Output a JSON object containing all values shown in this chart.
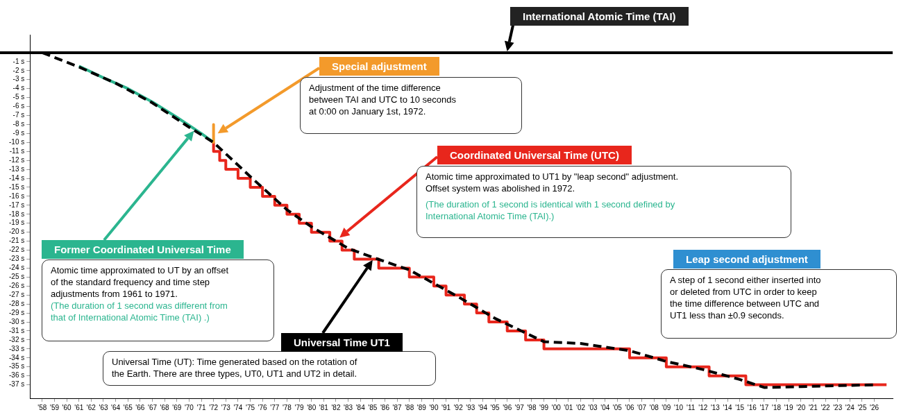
{
  "chart_data": {
    "type": "line",
    "xlim": [
      1957,
      2027.5
    ],
    "ylim": [
      -38.5,
      2
    ],
    "xticks": [
      {
        "value": 1958,
        "label": "'58"
      },
      {
        "value": 1959,
        "label": "'59"
      },
      {
        "value": 1960,
        "label": "'60"
      },
      {
        "value": 1961,
        "label": "'61"
      },
      {
        "value": 1962,
        "label": "'62"
      },
      {
        "value": 1963,
        "label": "'63"
      },
      {
        "value": 1964,
        "label": "'64"
      },
      {
        "value": 1965,
        "label": "'65"
      },
      {
        "value": 1966,
        "label": "'66"
      },
      {
        "value": 1967,
        "label": "'67"
      },
      {
        "value": 1968,
        "label": "'68"
      },
      {
        "value": 1969,
        "label": "'69"
      },
      {
        "value": 1970,
        "label": "'70"
      },
      {
        "value": 1971,
        "label": "'71"
      },
      {
        "value": 1972,
        "label": "'72"
      },
      {
        "value": 1973,
        "label": "'73"
      },
      {
        "value": 1974,
        "label": "'74"
      },
      {
        "value": 1975,
        "label": "'75"
      },
      {
        "value": 1976,
        "label": "'76"
      },
      {
        "value": 1977,
        "label": "'77"
      },
      {
        "value": 1978,
        "label": "'78"
      },
      {
        "value": 1979,
        "label": "'79"
      },
      {
        "value": 1980,
        "label": "'80"
      },
      {
        "value": 1981,
        "label": "'81"
      },
      {
        "value": 1982,
        "label": "'82"
      },
      {
        "value": 1983,
        "label": "'83"
      },
      {
        "value": 1984,
        "label": "'84"
      },
      {
        "value": 1985,
        "label": "'85"
      },
      {
        "value": 1986,
        "label": "'86"
      },
      {
        "value": 1987,
        "label": "'87"
      },
      {
        "value": 1988,
        "label": "'88"
      },
      {
        "value": 1989,
        "label": "'89"
      },
      {
        "value": 1990,
        "label": "'90"
      },
      {
        "value": 1991,
        "label": "'91"
      },
      {
        "value": 1992,
        "label": "'92"
      },
      {
        "value": 1993,
        "label": "'93"
      },
      {
        "value": 1994,
        "label": "'94"
      },
      {
        "value": 1995,
        "label": "'95"
      },
      {
        "value": 1996,
        "label": "'96"
      },
      {
        "value": 1997,
        "label": "'97"
      },
      {
        "value": 1998,
        "label": "'98"
      },
      {
        "value": 1999,
        "label": "'99"
      },
      {
        "value": 2000,
        "label": "'00"
      },
      {
        "value": 2001,
        "label": "'01"
      },
      {
        "value": 2002,
        "label": "'02"
      },
      {
        "value": 2003,
        "label": "'03"
      },
      {
        "value": 2004,
        "label": "'04"
      },
      {
        "value": 2005,
        "label": "'05"
      },
      {
        "value": 2006,
        "label": "'06"
      },
      {
        "value": 2007,
        "label": "'07"
      },
      {
        "value": 2008,
        "label": "'08"
      },
      {
        "value": 2009,
        "label": "'09"
      },
      {
        "value": 2010,
        "label": "'10"
      },
      {
        "value": 2011,
        "label": "'11"
      },
      {
        "value": 2012,
        "label": "'12"
      },
      {
        "value": 2013,
        "label": "'13"
      },
      {
        "value": 2014,
        "label": "'14"
      },
      {
        "value": 2015,
        "label": "'15"
      },
      {
        "value": 2016,
        "label": "'16"
      },
      {
        "value": 2017,
        "label": "'17"
      },
      {
        "value": 2018,
        "label": "'18"
      },
      {
        "value": 2019,
        "label": "'19"
      },
      {
        "value": 2020,
        "label": "'20"
      },
      {
        "value": 2021,
        "label": "'21"
      },
      {
        "value": 2022,
        "label": "'22"
      },
      {
        "value": 2023,
        "label": "'23"
      },
      {
        "value": 2024,
        "label": "'24"
      },
      {
        "value": 2025,
        "label": "'25"
      },
      {
        "value": 2026,
        "label": "'26"
      }
    ],
    "yticks": [
      {
        "value": -1,
        "label": "-1 s"
      },
      {
        "value": -2,
        "label": "-2 s"
      },
      {
        "value": -3,
        "label": "-3 s"
      },
      {
        "value": -4,
        "label": "-4 s"
      },
      {
        "value": -5,
        "label": "-5 s"
      },
      {
        "value": -6,
        "label": "-6 s"
      },
      {
        "value": -7,
        "label": "-7 s"
      },
      {
        "value": -8,
        "label": "-8 s"
      },
      {
        "value": -9,
        "label": "-9 s"
      },
      {
        "value": -10,
        "label": "-10 s"
      },
      {
        "value": -11,
        "label": "-11 s"
      },
      {
        "value": -12,
        "label": "-12 s"
      },
      {
        "value": -13,
        "label": "-13 s"
      },
      {
        "value": -14,
        "label": "-14 s"
      },
      {
        "value": -15,
        "label": "-15 s"
      },
      {
        "value": -16,
        "label": "-16 s"
      },
      {
        "value": -17,
        "label": "-17 s"
      },
      {
        "value": -18,
        "label": "-18 s"
      },
      {
        "value": -19,
        "label": "-19 s"
      },
      {
        "value": -20,
        "label": "-20 s"
      },
      {
        "value": -21,
        "label": "-21 s"
      },
      {
        "value": -22,
        "label": "-22 s"
      },
      {
        "value": -23,
        "label": "-23 s"
      },
      {
        "value": -24,
        "label": "-24 s"
      },
      {
        "value": -25,
        "label": "-25 s"
      },
      {
        "value": -26,
        "label": "-26 s"
      },
      {
        "value": -27,
        "label": "-27 s"
      },
      {
        "value": -28,
        "label": "-28 s"
      },
      {
        "value": -29,
        "label": "-29 s"
      },
      {
        "value": -30,
        "label": "-30 s"
      },
      {
        "value": -31,
        "label": "-31 s"
      },
      {
        "value": -32,
        "label": "-32 s"
      },
      {
        "value": -33,
        "label": "-33 s"
      },
      {
        "value": -34,
        "label": "-34 s"
      },
      {
        "value": -35,
        "label": "-35 s"
      },
      {
        "value": -36,
        "label": "-36 s"
      },
      {
        "value": -37,
        "label": "-37 s"
      }
    ],
    "grid": false,
    "legend": false,
    "marker": "none",
    "ref_lines": [
      {
        "axis": "y",
        "value": 0,
        "label": "International Atomic Time (TAI)",
        "color": "#000000"
      }
    ],
    "series": [
      {
        "name": "Universal Time UT1",
        "type": "line",
        "color": "#000000",
        "line_style": "dashed",
        "x": [
          1958,
          1961,
          1964,
          1967,
          1970,
          1972,
          1975,
          1978,
          1980,
          1983,
          1985,
          1988,
          1990,
          1992,
          1995,
          1999,
          2002,
          2006,
          2009,
          2012,
          2015,
          2017,
          2020,
          2026
        ],
        "values": [
          0,
          -1.6,
          -3.4,
          -5.6,
          -8.3,
          -10,
          -13.8,
          -17.5,
          -19.4,
          -21.8,
          -22.8,
          -24.2,
          -25.7,
          -27.2,
          -29.6,
          -32.2,
          -32.4,
          -33.2,
          -34.4,
          -35.3,
          -36.4,
          -37.3,
          -37.2,
          -37
        ]
      },
      {
        "name": "Former Coordinated Universal Time",
        "type": "line",
        "color": "#2bb58f",
        "x": [
          1961,
          1963,
          1965,
          1967,
          1969,
          1971,
          1971.9
        ],
        "values": [
          -1.5,
          -2.8,
          -4,
          -5.5,
          -7.2,
          -9,
          -9.9
        ]
      },
      {
        "name": "Special adjustment",
        "type": "line",
        "color": "#f39a2b",
        "x": [
          1972,
          1972
        ],
        "values": [
          -8,
          -10
        ]
      },
      {
        "name": "Coordinated Universal Time (UTC)",
        "type": "step",
        "color": "#e8261c",
        "x": [
          1972,
          1972.5,
          1973,
          1974,
          1975,
          1976,
          1977,
          1978,
          1979,
          1980,
          1981.5,
          1982.5,
          1983.5,
          1985.5,
          1988,
          1990,
          1991,
          1992.5,
          1993.5,
          1994.5,
          1996,
          1997.5,
          1999,
          2006,
          2009,
          2012.5,
          2015.5,
          2017,
          2027
        ],
        "values": [
          -10,
          -11,
          -12,
          -13,
          -14,
          -15,
          -16,
          -17,
          -18,
          -19,
          -20,
          -21,
          -22,
          -23,
          -24,
          -25,
          -26,
          -27,
          -28,
          -29,
          -30,
          -31,
          -32,
          -33,
          -34,
          -35,
          -36,
          -37,
          -37
        ]
      }
    ],
    "annotations": [
      "Adjustment of the time difference\nbetween TAI and UTC to 10 seconds\nat 0:00 on January 1st, 1972.",
      "Atomic time approximated to UT1 by \"leap second\" adjustment.\nOffset system was abolished in 1972.",
      "(The duration of 1 second is identical with 1 second defined by\nInternational Atomic Time (TAI).)",
      "Atomic time approximated to UT by an offset\nof the standard frequency and time step\nadjustments from 1961 to 1971.",
      "(The duration of 1 second was different from\nthat of International Atomic Time (TAI) .)",
      "Leap second adjustment",
      "A step of 1 second either inserted into\nor deleted from UTC in order to keep\nthe time difference between UTC and\nUT1 less than ±0.9 seconds.",
      "Universal Time (UT): Time generated based on the rotation of\nthe Earth. There are three types, UT0, UT1 and UT2 in detail."
    ]
  }
}
